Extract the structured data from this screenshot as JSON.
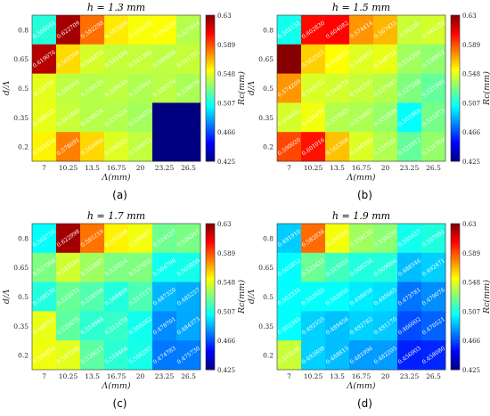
{
  "chart_data": [
    {
      "type": "heatmap",
      "title": "h = 1.3 mm",
      "panel_label": "(a)",
      "xlabel": "Λ(mm)",
      "ylabel": "d/Λ",
      "colorbar_label": "Rc(mm)",
      "x_ticks": [
        "7",
        "10.25",
        "13.5",
        "16.75",
        "20",
        "23.25",
        "26.5"
      ],
      "y_ticks": [
        "0.8",
        "0.65",
        "0.5",
        "0.35",
        "0.2"
      ],
      "colorbar_ticks": [
        "0.63",
        "0.589",
        "0.548",
        "0.507",
        "0.466",
        "0.425"
      ],
      "clim": [
        0.425,
        0.63
      ],
      "values": [
        [
          0.509044,
          0.622709,
          0.582298,
          0.557099,
          0.552016,
          0.552556,
          0.537844
        ],
        [
          0.619076,
          0.560306,
          0.544874,
          0.541494,
          0.541386,
          0.540036,
          0.541755
        ],
        [
          0.54776,
          0.540001,
          0.538225,
          0.539645,
          0.537061,
          0.539279,
          0.536076
        ],
        [
          0.548531,
          0.541849,
          0.538524,
          0.537624,
          0.534635,
          0.425,
          0.425
        ],
        [
          0.555416,
          0.578691,
          0.560906,
          0.546524,
          0.540812,
          0.425,
          0.425
        ]
      ],
      "labels": [
        [
          "0.509044",
          "0.622709",
          "0.582298",
          "0.557099",
          "0.552016",
          "0.552556",
          "0.537844"
        ],
        [
          "0.619076",
          "0.560306",
          "0.544874",
          "0.541494",
          "0.541386",
          "0.540036",
          "0.541755"
        ],
        [
          "0.54776",
          "0.540001",
          "0.538225",
          "0.539645",
          "0.537061",
          "0.539279",
          "0.536076"
        ],
        [
          "0.548531",
          "0.541849",
          "0.538524",
          "0.537624",
          "0.534635",
          "",
          ""
        ],
        [
          "0.555416",
          "0.578691",
          "0.560906",
          "0.546524",
          "0.540812",
          "",
          ""
        ]
      ]
    },
    {
      "type": "heatmap",
      "title": "h = 1.5 mm",
      "panel_label": "(b)",
      "xlabel": "Λ(mm)",
      "ylabel": "d/Λ",
      "colorbar_label": "Rc(mm)",
      "x_ticks": [
        "7",
        "10.25",
        "13.5",
        "16.75",
        "20",
        "23.25",
        "26.5"
      ],
      "y_ticks": [
        "0.8",
        "0.65",
        "0.5",
        "0.35",
        "0.2"
      ],
      "colorbar_ticks": [
        "0.63",
        "0.589",
        "0.548",
        "0.507",
        "0.466",
        "0.425"
      ],
      "clim": [
        0.425,
        0.63
      ],
      "values": [
        [
          0.505151,
          0.60283,
          0.604082,
          0.574414,
          0.567435,
          0.5422,
          0.54422
        ],
        [
          0.6286,
          0.562523,
          0.553053,
          0.546463,
          0.548716,
          0.5342,
          0.530942
        ],
        [
          0.574209,
          0.545552,
          0.544078,
          0.541597,
          0.537987,
          0.527588,
          0.521995
        ],
        [
          0.54445,
          0.550476,
          0.537565,
          0.536697,
          0.532309,
          0.501988,
          0.525373
        ],
        [
          0.59002,
          0.601016,
          0.565308,
          0.546103,
          0.537524,
          0.521912,
          0.53176
        ]
      ],
      "labels": [
        [
          "0.505151",
          "0.602830",
          "0.604082",
          "0.574414",
          "0.567435",
          "0.54220",
          "0.544220"
        ],
        [
          "",
          "0.562523",
          "0.553053",
          "0.546463",
          "0.548716",
          "0.534200",
          "0.530942"
        ],
        [
          "0.574209",
          "0.545552",
          "0.544078",
          "0.541597",
          "0.537987",
          "0.527588",
          "0.521995"
        ],
        [
          "0.544450",
          "0.550476",
          "0.537565",
          "0.536697",
          "0.532309",
          "0.501988",
          "0.525373"
        ],
        [
          "0.590020",
          "0.601016",
          "0.565308",
          "0.546103",
          "0.537524",
          "0.521912",
          "0.531760"
        ]
      ]
    },
    {
      "type": "heatmap",
      "title": "h = 1.7 mm",
      "panel_label": "(c)",
      "xlabel": "Λ(mm)",
      "ylabel": "d/Λ",
      "colorbar_label": "Rc(mm)",
      "x_ticks": [
        "7",
        "10.25",
        "13.5",
        "16.75",
        "20",
        "23.25",
        "26.5"
      ],
      "y_ticks": [
        "0.8",
        "0.65",
        "0.5",
        "0.35",
        "0.2"
      ],
      "colorbar_ticks": [
        "0.63",
        "0.589",
        "0.548",
        "0.507",
        "0.466",
        "0.425"
      ],
      "clim": [
        0.425,
        0.63
      ],
      "values": [
        [
          0.50275,
          0.622998,
          0.581219,
          0.555508,
          0.550607,
          0.524127,
          0.526347
        ],
        [
          0.527098,
          0.543546,
          0.533887,
          0.526816,
          0.527655,
          0.504798,
          0.505859
        ],
        [
          0.508536,
          0.522673,
          0.518306,
          0.508499,
          0.517217,
          0.48732,
          0.485257
        ],
        [
          0.548791,
          0.520675,
          0.510948,
          0.512478,
          0.505262,
          0.478701,
          0.484373
        ],
        [
          0.550254,
          0.547508,
          0.520612,
          0.510466,
          0.506297,
          0.474783,
          0.47573
        ]
      ],
      "labels": [
        [
          "0.502750",
          "0.622998",
          "0.581219",
          "0.555508",
          "0.550607",
          "0.524127",
          "0.526347"
        ],
        [
          "0.527098",
          "0.543546",
          "0.533887",
          "0.526816",
          "0.527655",
          "0.504798",
          "0.505859"
        ],
        [
          "0.508536",
          "0.522673",
          "0.518306",
          "0.508499",
          "0.517217",
          "0.487320",
          "0.485257"
        ],
        [
          "0.548791",
          "0.520675",
          "0.510948",
          "0.512478",
          "0.505262",
          "0.478701",
          "0.484373"
        ],
        [
          "0.550254",
          "0.547508",
          "0.520612",
          "0.510466",
          "0.506297",
          "0.474783",
          "0.475730"
        ]
      ]
    },
    {
      "type": "heatmap",
      "title": "h = 1.9 mm",
      "panel_label": "(d)",
      "xlabel": "Λ(mm)",
      "ylabel": "d/Λ",
      "colorbar_label": "Rc(mm)",
      "x_ticks": [
        "7",
        "10.25",
        "13.5",
        "16.75",
        "20",
        "23.25",
        "26.5"
      ],
      "y_ticks": [
        "0.8",
        "0.65",
        "0.5",
        "0.35",
        "0.2"
      ],
      "colorbar_ticks": [
        "0.63",
        "0.589",
        "0.548",
        "0.507",
        "0.466",
        "0.425"
      ],
      "clim": [
        0.425,
        0.63
      ],
      "values": [
        [
          0.49191,
          0.582836,
          0.551105,
          0.534132,
          0.53029,
          0.505027,
          0.507891
        ],
        [
          0.501852,
          0.523433,
          0.515026,
          0.508256,
          0.509006,
          0.488546,
          0.492471
        ],
        [
          0.502334,
          0.50262,
          0.502056,
          0.498056,
          0.495665,
          0.473781,
          0.479076
        ],
        [
          0.502348,
          0.492555,
          0.489456,
          0.492782,
          0.49117,
          0.466002,
          0.470521
        ],
        [
          0.542291,
          0.492808,
          0.488815,
          0.481996,
          0.482205,
          0.456903,
          0.45808
        ]
      ],
      "labels": [
        [
          "0.491910",
          "0.582836",
          "0.551105",
          "0.534132",
          "0.530290",
          "0.505027",
          "0.507891"
        ],
        [
          "0.501852",
          "0.523433",
          "0.515026",
          "0.508256",
          "0.509006",
          "0.488546",
          "0.492471"
        ],
        [
          "0.502334",
          "0.502620",
          "0.502056",
          "0.498056",
          "0.495665",
          "0.473781",
          "0.479076"
        ],
        [
          "0.502348",
          "0.492555",
          "0.489456",
          "0.492782",
          "0.491170",
          "0.466002",
          "0.470521"
        ],
        [
          "0.542291",
          "0.492808",
          "0.488815",
          "0.481996",
          "0.482205",
          "0.456903",
          "0.458080"
        ]
      ]
    }
  ]
}
